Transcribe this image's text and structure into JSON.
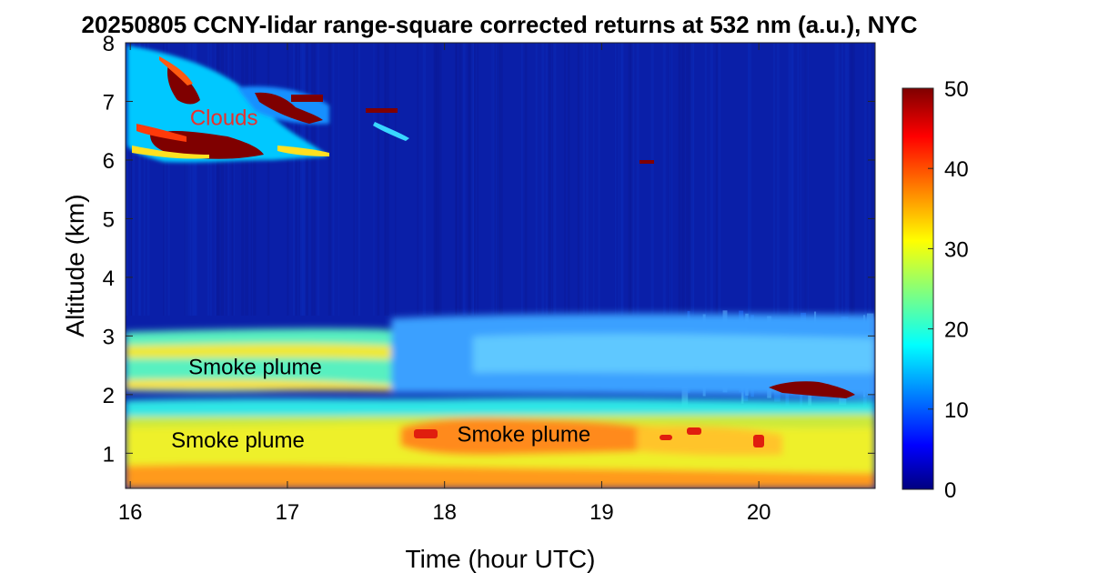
{
  "chart_data": {
    "type": "heatmap",
    "title": "20250805 CCNY-lidar range-square corrected returns at 532 nm (a.u.), NYC",
    "xlabel": "Time (hour UTC)",
    "ylabel": "Altitude (km)",
    "xlim": [
      15.97,
      20.74
    ],
    "ylim": [
      0.4,
      8.0
    ],
    "x_ticks": [
      16,
      17,
      18,
      19,
      20
    ],
    "y_ticks": [
      1,
      2,
      3,
      4,
      5,
      6,
      7,
      8
    ],
    "colormap": "jet",
    "colorbar": {
      "min": 0,
      "max": 50,
      "ticks": [
        0,
        10,
        20,
        30,
        40,
        50
      ]
    },
    "annotations": [
      {
        "text": "Clouds",
        "x": 16.38,
        "y": 6.6,
        "color": "#e8312d"
      },
      {
        "text": "Smoke plume",
        "x": 16.37,
        "y": 2.35,
        "color": "#000000"
      },
      {
        "text": "Smoke plume",
        "x": 16.26,
        "y": 1.1,
        "color": "#000000"
      },
      {
        "text": "Smoke plume",
        "x": 18.08,
        "y": 1.2,
        "color": "#000000"
      }
    ],
    "features": [
      {
        "name": "surface layer",
        "t": [
          15.97,
          20.74
        ],
        "alt": [
          0.4,
          0.6
        ],
        "level": 42
      },
      {
        "name": "boundary layer aerosol",
        "t": [
          15.97,
          20.74
        ],
        "alt": [
          0.6,
          1.7
        ],
        "level": 28
      },
      {
        "name": "upper smoke plume",
        "t": [
          15.97,
          17.8
        ],
        "alt": [
          2.0,
          3.1
        ],
        "level": 26
      },
      {
        "name": "mid smoke plume",
        "t": [
          17.75,
          19.7
        ],
        "alt": [
          1.0,
          1.5
        ],
        "level": 40
      },
      {
        "name": "cloud",
        "t": [
          16.0,
          17.3
        ],
        "alt": [
          6.0,
          8.0
        ],
        "level": 50
      },
      {
        "name": "cloud",
        "t": [
          17.5,
          17.7
        ],
        "alt": [
          6.7,
          6.9
        ],
        "level": 50
      },
      {
        "name": "cloud",
        "t": [
          19.2,
          19.3
        ],
        "alt": [
          5.9,
          6.0
        ],
        "level": 50
      },
      {
        "name": "cloud",
        "t": [
          20.05,
          20.6
        ],
        "alt": [
          1.95,
          2.15
        ],
        "level": 50
      }
    ]
  }
}
